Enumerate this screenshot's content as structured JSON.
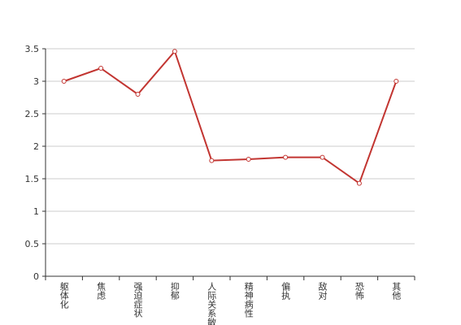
{
  "chart_data": {
    "type": "line",
    "categories": [
      "躯体化",
      "焦虑",
      "强迫症状",
      "抑郁",
      "人际关系敏感",
      "精神病性",
      "偏执",
      "敌对",
      "恐怖",
      "其他"
    ],
    "series": [
      {
        "color": "#c23531",
        "values": [
          3.0,
          3.2,
          2.8,
          3.46,
          1.78,
          1.8,
          1.83,
          1.83,
          1.43,
          3.0
        ]
      }
    ],
    "ylim": [
      0,
      3.5
    ],
    "yticks": [
      0,
      0.5,
      1,
      1.5,
      2,
      2.5,
      3,
      3.5
    ],
    "grid": true
  }
}
